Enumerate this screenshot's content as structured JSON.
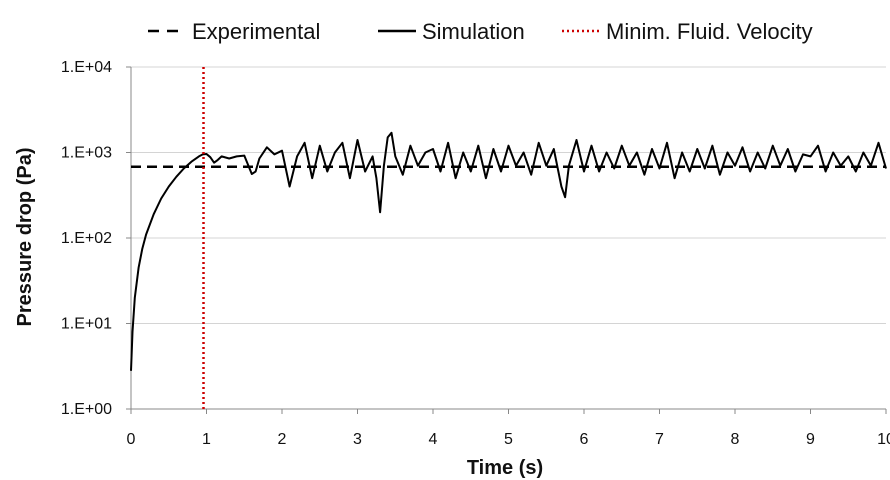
{
  "chart_data": {
    "type": "line",
    "title": "",
    "xlabel": "Time (s)",
    "ylabel": "Pressure drop (Pa)",
    "xlim": [
      0,
      10
    ],
    "ylim": [
      1,
      10000
    ],
    "y_scale": "log",
    "grid": "horizontal",
    "legend_position": "top",
    "x_ticks": [
      "0",
      "1",
      "2",
      "3",
      "4",
      "5",
      "6",
      "7",
      "8",
      "9",
      "10"
    ],
    "y_ticks": [
      {
        "value": 1,
        "label": "1.E+00"
      },
      {
        "value": 10,
        "label": "1.E+01"
      },
      {
        "value": 100,
        "label": "1.E+02"
      },
      {
        "value": 1000,
        "label": "1.E+03"
      },
      {
        "value": 10000,
        "label": "1.E+04"
      }
    ],
    "series": [
      {
        "name": "Experimental",
        "style": "dashed",
        "color": "#000000",
        "x": [
          0,
          10
        ],
        "y": [
          680,
          680
        ]
      },
      {
        "name": "Simulation",
        "style": "solid",
        "color": "#000000",
        "x": [
          0,
          0.02,
          0.05,
          0.1,
          0.15,
          0.2,
          0.3,
          0.4,
          0.5,
          0.6,
          0.7,
          0.8,
          0.9,
          0.95,
          1.0,
          1.05,
          1.1,
          1.15,
          1.2,
          1.3,
          1.4,
          1.5,
          1.6,
          1.65,
          1.7,
          1.8,
          1.9,
          2.0,
          2.1,
          2.2,
          2.3,
          2.4,
          2.5,
          2.6,
          2.7,
          2.8,
          2.9,
          3.0,
          3.1,
          3.2,
          3.25,
          3.3,
          3.35,
          3.4,
          3.45,
          3.5,
          3.6,
          3.7,
          3.8,
          3.9,
          4.0,
          4.1,
          4.2,
          4.3,
          4.4,
          4.5,
          4.6,
          4.7,
          4.8,
          4.9,
          5.0,
          5.1,
          5.2,
          5.3,
          5.4,
          5.5,
          5.6,
          5.7,
          5.75,
          5.8,
          5.9,
          6.0,
          6.1,
          6.2,
          6.3,
          6.4,
          6.5,
          6.6,
          6.7,
          6.8,
          6.9,
          7.0,
          7.1,
          7.2,
          7.3,
          7.4,
          7.5,
          7.6,
          7.7,
          7.8,
          7.9,
          8.0,
          8.1,
          8.2,
          8.3,
          8.4,
          8.5,
          8.6,
          8.7,
          8.8,
          8.9,
          9.0,
          9.1,
          9.2,
          9.3,
          9.4,
          9.5,
          9.6,
          9.7,
          9.8,
          9.9,
          10.0
        ],
        "y": [
          2.8,
          8,
          20,
          45,
          75,
          110,
          190,
          290,
          400,
          520,
          650,
          780,
          900,
          950,
          960,
          880,
          760,
          820,
          900,
          850,
          900,
          920,
          560,
          600,
          850,
          1150,
          950,
          1050,
          400,
          900,
          1300,
          500,
          1200,
          600,
          1000,
          1300,
          500,
          1400,
          600,
          900,
          500,
          200,
          700,
          1500,
          1700,
          900,
          550,
          1200,
          700,
          1000,
          1100,
          600,
          1300,
          500,
          1000,
          600,
          1200,
          500,
          1100,
          600,
          1200,
          700,
          1000,
          550,
          1300,
          700,
          1100,
          400,
          300,
          700,
          1400,
          600,
          1200,
          600,
          1000,
          650,
          1200,
          700,
          1000,
          550,
          1100,
          650,
          1300,
          500,
          1000,
          600,
          1100,
          650,
          1200,
          550,
          1000,
          700,
          1150,
          600,
          1000,
          650,
          1200,
          700,
          1100,
          600,
          950,
          900,
          1200,
          600,
          1000,
          700,
          900,
          600,
          1000,
          700,
          1300,
          650
        ]
      },
      {
        "name": "Minim. Fluid. Velocity",
        "style": "dotted",
        "color": "#cc0000",
        "x": [
          0.96,
          0.96
        ],
        "y": [
          1,
          10000
        ]
      }
    ]
  }
}
